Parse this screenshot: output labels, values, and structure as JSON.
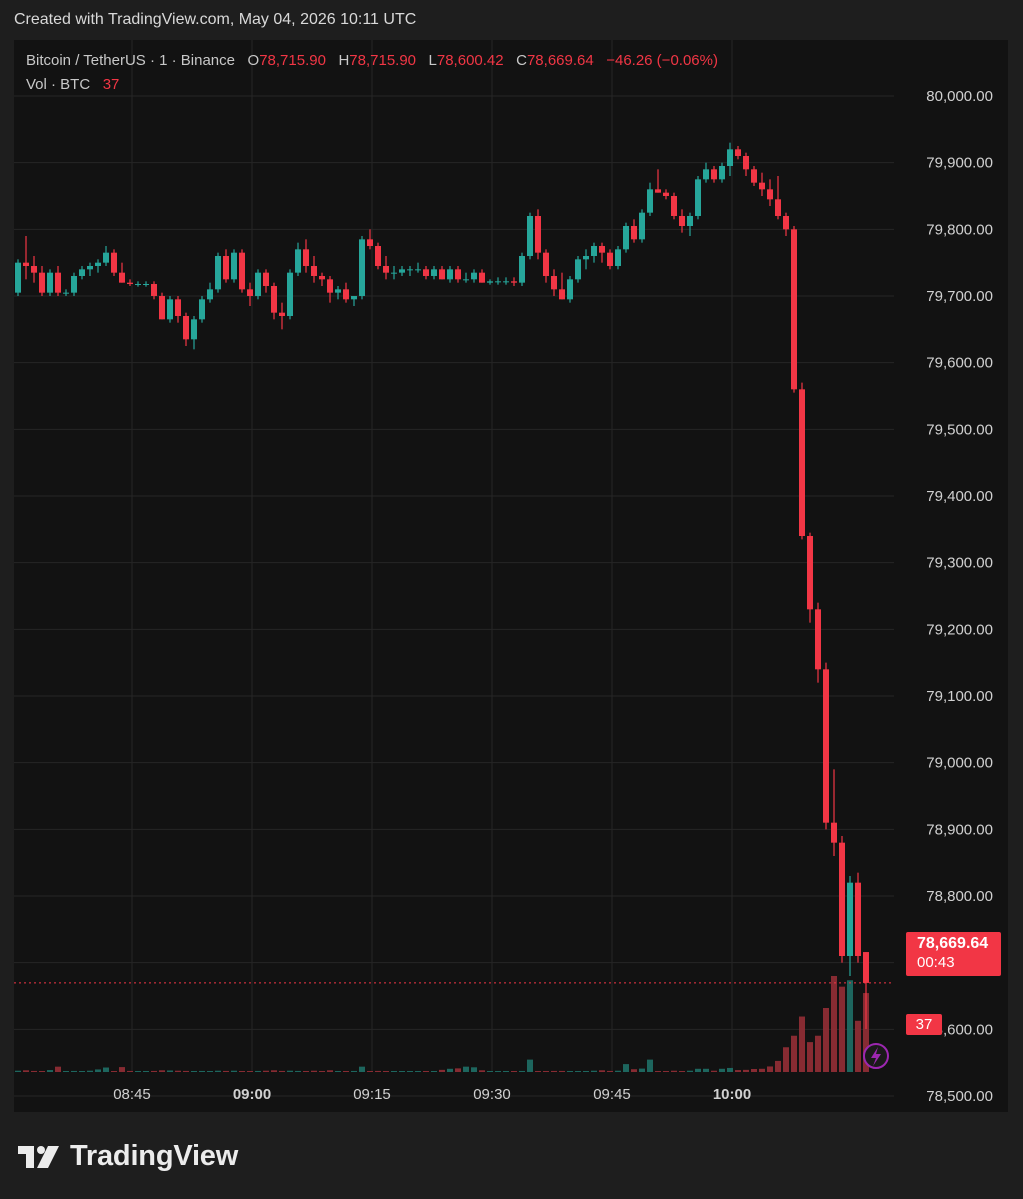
{
  "header": {
    "text": "Created with TradingView.com, May 04, 2026 10:11 UTC"
  },
  "legend": {
    "symbol": "Bitcoin / TetherUS · 1 · Binance",
    "o_label": "O",
    "o_value": "78,715.90",
    "h_label": "H",
    "h_value": "78,715.90",
    "l_label": "L",
    "l_value": "78,600.42",
    "c_label": "C",
    "c_value": "78,669.64",
    "change": "−46.26 (−0.06%)",
    "vol_label": "Vol · BTC",
    "vol_value": "37"
  },
  "price_badge": {
    "price": "78,669.64",
    "countdown": "00:43"
  },
  "volume_badge": {
    "value": "37"
  },
  "footer": {
    "brand": "TradingView"
  },
  "colors": {
    "up": "#26a69a",
    "down": "#f23645",
    "background": "#121212",
    "grid": "#262626"
  },
  "chart_data": {
    "type": "candlestick",
    "ylim": [
      78450,
      80050
    ],
    "y_ticks": [
      "80,000.00",
      "79,900.00",
      "79,800.00",
      "79,700.00",
      "79,600.00",
      "79,500.00",
      "79,400.00",
      "79,300.00",
      "79,200.00",
      "79,100.00",
      "79,000.00",
      "78,900.00",
      "78,800.00",
      "78,700.00",
      "78,600.00",
      "78,500.00"
    ],
    "y_tick_values": [
      80000,
      79900,
      79800,
      79700,
      79600,
      79500,
      79400,
      79300,
      79200,
      79100,
      79000,
      78900,
      78800,
      78700,
      78600,
      78500
    ],
    "x_ticks": [
      "08:45",
      "09:00",
      "09:15",
      "09:30",
      "09:45",
      "10:00"
    ],
    "x_tick_index": [
      14,
      29,
      44,
      59,
      74,
      89
    ],
    "current_price": 78669.64,
    "candles": [
      [
        79705,
        79755,
        79700,
        79750,
        0.6
      ],
      [
        79750,
        79790,
        79725,
        79745,
        0.8
      ],
      [
        79745,
        79760,
        79720,
        79735,
        0.5
      ],
      [
        79735,
        79745,
        79700,
        79705,
        0.3
      ],
      [
        79705,
        79740,
        79700,
        79735,
        0.9
      ],
      [
        79735,
        79745,
        79700,
        79705,
        2.5
      ],
      [
        79705,
        79710,
        79700,
        79705,
        0.3
      ],
      [
        79705,
        79735,
        79700,
        79730,
        0.5
      ],
      [
        79730,
        79745,
        79725,
        79740,
        0.4
      ],
      [
        79740,
        79750,
        79730,
        79745,
        0.6
      ],
      [
        79745,
        79755,
        79735,
        79750,
        1.2
      ],
      [
        79750,
        79775,
        79745,
        79765,
        2.1
      ],
      [
        79765,
        79770,
        79730,
        79735,
        0.4
      ],
      [
        79735,
        79750,
        79720,
        79720,
        2.3
      ],
      [
        79720,
        79725,
        79715,
        79718,
        0.5
      ],
      [
        79718,
        79722,
        79714,
        79718,
        0.3
      ],
      [
        79718,
        79722,
        79714,
        79718,
        0.4
      ],
      [
        79718,
        79722,
        79695,
        79700,
        0.5
      ],
      [
        79700,
        79705,
        79665,
        79665,
        0.8
      ],
      [
        79665,
        79700,
        79660,
        79695,
        0.7
      ],
      [
        79695,
        79700,
        79660,
        79670,
        0.6
      ],
      [
        79670,
        79675,
        79625,
        79635,
        0.5
      ],
      [
        79635,
        79670,
        79620,
        79665,
        0.4
      ],
      [
        79665,
        79700,
        79660,
        79695,
        0.5
      ],
      [
        79695,
        79720,
        79690,
        79710,
        0.4
      ],
      [
        79710,
        79765,
        79705,
        79760,
        0.6
      ],
      [
        79760,
        79770,
        79720,
        79725,
        0.5
      ],
      [
        79725,
        79770,
        79720,
        79765,
        0.6
      ],
      [
        79765,
        79770,
        79705,
        79710,
        0.4
      ],
      [
        79710,
        79720,
        79685,
        79700,
        0.3
      ],
      [
        79700,
        79740,
        79695,
        79735,
        0.5
      ],
      [
        79735,
        79740,
        79705,
        79715,
        0.6
      ],
      [
        79715,
        79720,
        79665,
        79675,
        0.8
      ],
      [
        79675,
        79690,
        79650,
        79670,
        0.5
      ],
      [
        79670,
        79740,
        79665,
        79735,
        0.6
      ],
      [
        79735,
        79780,
        79730,
        79770,
        0.5
      ],
      [
        79770,
        79785,
        79735,
        79745,
        0.3
      ],
      [
        79745,
        79760,
        79720,
        79730,
        0.6
      ],
      [
        79730,
        79735,
        79715,
        79725,
        0.4
      ],
      [
        79725,
        79730,
        79690,
        79705,
        0.8
      ],
      [
        79705,
        79715,
        79695,
        79710,
        0.3
      ],
      [
        79710,
        79720,
        79690,
        79695,
        0.4
      ],
      [
        79695,
        79700,
        79685,
        79700,
        0.5
      ],
      [
        79700,
        79790,
        79695,
        79785,
        2.5
      ],
      [
        79785,
        79800,
        79770,
        79775,
        0.3
      ],
      [
        79775,
        79780,
        79740,
        79745,
        0.5
      ],
      [
        79745,
        79760,
        79725,
        79735,
        0.4
      ],
      [
        79735,
        79745,
        79725,
        79735,
        0.3
      ],
      [
        79735,
        79745,
        79730,
        79740,
        0.3
      ],
      [
        79740,
        79745,
        79730,
        79740,
        0.3
      ],
      [
        79740,
        79750,
        79735,
        79740,
        0.4
      ],
      [
        79740,
        79745,
        79725,
        79730,
        0.3
      ],
      [
        79730,
        79745,
        79725,
        79740,
        0.4
      ],
      [
        79740,
        79745,
        79725,
        79725,
        1.0
      ],
      [
        79725,
        79745,
        79720,
        79740,
        1.5
      ],
      [
        79740,
        79745,
        79720,
        79725,
        1.7
      ],
      [
        79725,
        79735,
        79720,
        79725,
        2.5
      ],
      [
        79725,
        79740,
        79720,
        79735,
        2.2
      ],
      [
        79735,
        79740,
        79720,
        79720,
        0.8
      ],
      [
        79720,
        79725,
        79717,
        79722,
        0.4
      ],
      [
        79722,
        79728,
        79717,
        79722,
        0.3
      ],
      [
        79722,
        79728,
        79717,
        79722,
        0.3
      ],
      [
        79722,
        79728,
        79715,
        79720,
        0.3
      ],
      [
        79720,
        79765,
        79715,
        79760,
        0.5
      ],
      [
        79760,
        79825,
        79755,
        79820,
        5.8
      ],
      [
        79820,
        79830,
        79755,
        79765,
        0.4
      ],
      [
        79765,
        79770,
        79720,
        79730,
        0.3
      ],
      [
        79730,
        79740,
        79700,
        79710,
        0.5
      ],
      [
        79710,
        79735,
        79695,
        79695,
        0.5
      ],
      [
        79695,
        79730,
        79690,
        79725,
        0.4
      ],
      [
        79725,
        79760,
        79720,
        79755,
        0.4
      ],
      [
        79755,
        79770,
        79740,
        79760,
        0.3
      ],
      [
        79760,
        79780,
        79750,
        79775,
        0.6
      ],
      [
        79775,
        79780,
        79750,
        79765,
        0.8
      ],
      [
        79765,
        79770,
        79740,
        79745,
        0.5
      ],
      [
        79745,
        79775,
        79740,
        79770,
        0.6
      ],
      [
        79770,
        79810,
        79765,
        79805,
        3.7
      ],
      [
        79805,
        79815,
        79780,
        79785,
        1.3
      ],
      [
        79785,
        79830,
        79780,
        79825,
        1.6
      ],
      [
        79825,
        79870,
        79820,
        79860,
        5.8
      ],
      [
        79860,
        79890,
        79855,
        79855,
        0.4
      ],
      [
        79855,
        79860,
        79845,
        79850,
        0.3
      ],
      [
        79850,
        79855,
        79815,
        79820,
        0.6
      ],
      [
        79820,
        79830,
        79795,
        79805,
        0.3
      ],
      [
        79805,
        79825,
        79790,
        79820,
        0.6
      ],
      [
        79820,
        79880,
        79815,
        79875,
        1.5
      ],
      [
        79875,
        79900,
        79870,
        79890,
        1.5
      ],
      [
        79890,
        79895,
        79870,
        79875,
        0.6
      ],
      [
        79875,
        79900,
        79870,
        79895,
        1.5
      ],
      [
        79895,
        79930,
        79880,
        79920,
        1.9
      ],
      [
        79920,
        79925,
        79905,
        79910,
        0.9
      ],
      [
        79910,
        79915,
        79880,
        79890,
        1.0
      ],
      [
        79890,
        79895,
        79865,
        79870,
        1.4
      ],
      [
        79870,
        79885,
        79850,
        79860,
        1.5
      ],
      [
        79860,
        79875,
        79835,
        79845,
        2.6
      ],
      [
        79845,
        79880,
        79815,
        79820,
        5.2
      ],
      [
        79820,
        79825,
        79790,
        79800,
        11.6
      ],
      [
        79800,
        79805,
        79555,
        79560,
        17.0
      ],
      [
        79560,
        79570,
        79335,
        79340,
        26.0
      ],
      [
        79340,
        79345,
        79210,
        79230,
        14.0
      ],
      [
        79230,
        79240,
        79120,
        79140,
        17.0
      ],
      [
        79140,
        79150,
        78900,
        78910,
        30.0
      ],
      [
        78910,
        78990,
        78860,
        78880,
        45.0
      ],
      [
        78880,
        78890,
        78700,
        78710,
        40.0
      ],
      [
        78710,
        78830,
        78680,
        78820,
        43.0
      ],
      [
        78820,
        78835,
        78700,
        78710,
        24.0
      ],
      [
        78715.9,
        78715.9,
        78600.42,
        78669.64,
        37
      ]
    ]
  }
}
